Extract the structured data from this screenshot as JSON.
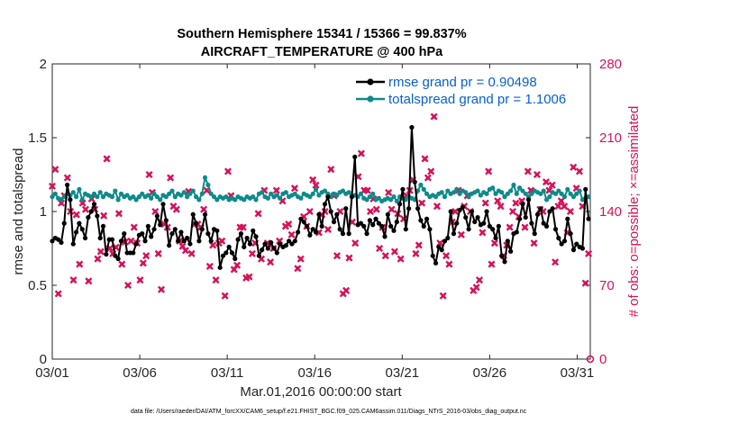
{
  "chart_data": {
    "type": "line",
    "title": "Southern Hemisphere 15341 / 15366 = 99.837%",
    "subtitle": "AIRCRAFT_TEMPERATURE @ 400 hPa",
    "xlabel": "Mar.01,2016 00:00:00 start",
    "ylabel": "rmse and totalspread",
    "ylabel_right": "# of obs: o=possible; ×=assimilated",
    "footer": "data file: /Users/raeder/DAI/ATM_forcXX/CAM6_setup/f.e21.FHIST_BGC.f09_025.CAM6assim.011/Diags_NTrS_2016-03/obs_diag_output.nc",
    "x_ticks": [
      {
        "value": 1,
        "label": "03/01"
      },
      {
        "value": 6,
        "label": "03/06"
      },
      {
        "value": 11,
        "label": "03/11"
      },
      {
        "value": 16,
        "label": "03/16"
      },
      {
        "value": 21,
        "label": "03/21"
      },
      {
        "value": 26,
        "label": "03/26"
      },
      {
        "value": 31,
        "label": "03/31"
      }
    ],
    "xlim": [
      1,
      31.75
    ],
    "ylim": [
      0,
      2
    ],
    "y_ticks": [
      "0",
      "0.5",
      "1",
      "1.5",
      "2"
    ],
    "ylim_right": [
      0,
      280
    ],
    "y_ticks_right": [
      "0",
      "70",
      "140",
      "210",
      "280"
    ],
    "grid": false,
    "legend": {
      "placement": "top-right",
      "entries": [
        {
          "name": "rmse grand pr = 0.90498",
          "color": "#000000"
        },
        {
          "name": "totalspread grand pr = 1.1006",
          "color": "#0e8a8a"
        }
      ]
    },
    "series": [
      {
        "name": "rmse grand pr = 0.90498",
        "color": "#000000",
        "axis": "left",
        "values": [
          0.8,
          0.82,
          0.81,
          0.79,
          0.92,
          1.18,
          1.08,
          0.78,
          0.86,
          0.92,
          0.88,
          0.82,
          0.96,
          1.0,
          1.05,
          0.97,
          0.82,
          0.9,
          0.71,
          0.81,
          0.81,
          0.7,
          0.68,
          0.8,
          0.85,
          0.72,
          0.72,
          0.72,
          0.78,
          0.84,
          0.85,
          0.8,
          0.9,
          0.83,
          0.88,
          0.97,
          0.91,
          1.05,
          0.94,
          0.77,
          0.85,
          0.88,
          0.8,
          0.86,
          0.8,
          0.82,
          0.78,
          0.98,
          0.92,
          0.8,
          0.88,
          0.98,
          0.85,
          0.8,
          0.88,
          0.87,
          0.62,
          0.7,
          0.72,
          0.76,
          0.72,
          0.68,
          0.81,
          0.85,
          0.76,
          0.82,
          0.78,
          0.87,
          0.83,
          0.7,
          0.74,
          0.78,
          0.75,
          0.79,
          0.75,
          0.72,
          0.78,
          0.76,
          0.77,
          0.8,
          0.78,
          0.8,
          0.86,
          0.95,
          0.93,
          0.9,
          0.84,
          0.88,
          0.86,
          0.98,
          0.9,
          1.05,
          1.1,
          1.0,
          0.93,
          0.98,
          0.88,
          0.85,
          1.02,
          0.85,
          1.1,
          1.37,
          0.91,
          0.92,
          0.9,
          0.85,
          0.94,
          0.91,
          0.95,
          0.92,
          0.9,
          0.83,
          0.98,
          0.9,
          0.87,
          0.93,
          1.05,
          1.15,
          0.88,
          1.02,
          1.57,
          1.2,
          1.02,
          0.94,
          0.9,
          0.95,
          0.88,
          0.7,
          0.65,
          0.76,
          0.74,
          0.8,
          0.82,
          1.0,
          0.85,
          0.92,
          1.01,
          1.03,
          0.96,
          0.88,
          1.0,
          0.93,
          0.96,
          0.91,
          0.92,
          1.0,
          0.9,
          0.88,
          0.82,
          0.9,
          0.7,
          0.66,
          0.8,
          0.73,
          0.85,
          0.86,
          0.95,
          1.05,
          0.96,
          1.08,
          0.92,
          0.85,
          0.98,
          1.02,
          0.92,
          0.9,
          1.0,
          1.02,
          0.88,
          0.82,
          0.78,
          0.8,
          0.95,
          0.85,
          0.74,
          0.78,
          0.76,
          0.75,
          1.15,
          0.95
        ]
      },
      {
        "name": "totalspread grand pr = 1.1006",
        "color": "#0e8a8a",
        "axis": "left",
        "values": [
          1.1,
          1.12,
          1.09,
          1.08,
          1.1,
          1.12,
          1.11,
          1.13,
          1.1,
          1.15,
          1.08,
          1.12,
          1.11,
          1.1,
          1.12,
          1.1,
          1.13,
          1.1,
          1.12,
          1.11,
          1.1,
          1.14,
          1.08,
          1.12,
          1.1,
          1.11,
          1.09,
          1.1,
          1.08,
          1.1,
          1.12,
          1.1,
          1.11,
          1.09,
          1.12,
          1.1,
          1.08,
          1.11,
          1.1,
          1.12,
          1.14,
          1.1,
          1.12,
          1.11,
          1.13,
          1.1,
          1.12,
          1.14,
          1.1,
          1.08,
          1.12,
          1.23,
          1.18,
          1.12,
          1.1,
          1.08,
          1.1,
          1.09,
          1.1,
          1.08,
          1.09,
          1.08,
          1.1,
          1.09,
          1.08,
          1.1,
          1.09,
          1.1,
          1.08,
          1.12,
          1.13,
          1.1,
          1.09,
          1.12,
          1.1,
          1.11,
          1.09,
          1.12,
          1.13,
          1.1,
          1.11,
          1.12,
          1.1,
          1.09,
          1.12,
          1.11,
          1.1,
          1.12,
          1.15,
          1.11,
          1.13,
          1.14,
          1.12,
          1.1,
          1.12,
          1.11,
          1.13,
          1.14,
          1.12,
          1.13,
          1.1,
          1.11,
          1.1,
          1.12,
          1.09,
          1.08,
          1.1,
          1.12,
          1.08,
          1.09,
          1.07,
          1.08,
          1.09,
          1.08,
          1.1,
          1.07,
          1.1,
          1.09,
          1.08,
          1.1,
          1.09,
          1.08,
          1.14,
          1.18,
          1.15,
          1.12,
          1.1,
          1.11,
          1.1,
          1.12,
          1.13,
          1.1,
          1.14,
          1.12,
          1.13,
          1.15,
          1.12,
          1.14,
          1.13,
          1.1,
          1.12,
          1.13,
          1.14,
          1.11,
          1.13,
          1.12,
          1.15,
          1.16,
          1.12,
          1.14,
          1.13,
          1.1,
          1.12,
          1.14,
          1.18,
          1.12,
          1.16,
          1.14,
          1.12,
          1.1,
          1.12,
          1.14,
          1.13,
          1.12,
          1.14,
          1.08,
          1.1,
          1.13,
          1.12,
          1.14,
          1.12,
          1.1,
          1.15,
          1.12,
          1.1,
          1.12,
          1.14,
          1.08,
          1.09,
          1.1
        ]
      },
      {
        "name": "",
        "color": "#d6135a",
        "axis": "right",
        "marker": "x",
        "values": [
          164,
          180,
          62,
          148,
          155,
          172,
          140,
          75,
          137,
          90,
          148,
          142,
          74,
          152,
          142,
          95,
          102,
          136,
          190,
          105,
          100,
          106,
          138,
          90,
          111,
          70,
          112,
          125,
          110,
          75,
          91,
          98,
          175,
          158,
          140,
          100,
          66,
          128,
          125,
          172,
          145,
          142,
          112,
          107,
          103,
          159,
          100,
          128,
          128,
          125,
          142,
          160,
          88,
          108,
          75,
          110,
          112,
          60,
          178,
          155,
          85,
          89,
          125,
          125,
          77,
          78,
          100,
          110,
          138,
          95,
          160,
          110,
          92,
          105,
          160,
          112,
          150,
          126,
          128,
          118,
          162,
          86,
          95,
          135,
          126,
          140,
          170,
          165,
          120,
          137,
          140,
          123,
          180,
          155,
          98,
          140,
          62,
          65,
          96,
          130,
          110,
          173,
          195,
          160,
          160,
          140,
          152,
          142,
          105,
          125,
          98,
          158,
          142,
          102,
          138,
          95,
          133,
          155,
          160,
          170,
          100,
          108,
          148,
          190,
          172,
          178,
          230,
          145,
          110,
          60,
          98,
          90,
          130,
          140,
          160,
          118,
          145,
          155,
          140,
          65,
          68,
          75,
          120,
          148,
          178,
          90,
          110,
          150,
          145,
          98,
          108,
          125,
          140,
          148,
          135,
          150,
          125,
          178,
          160,
          110,
          175,
          142,
          140,
          168,
          160,
          165,
          92,
          145,
          150,
          145,
          120,
          140,
          182,
          162,
          178,
          145,
          72,
          100
        ]
      }
    ]
  }
}
